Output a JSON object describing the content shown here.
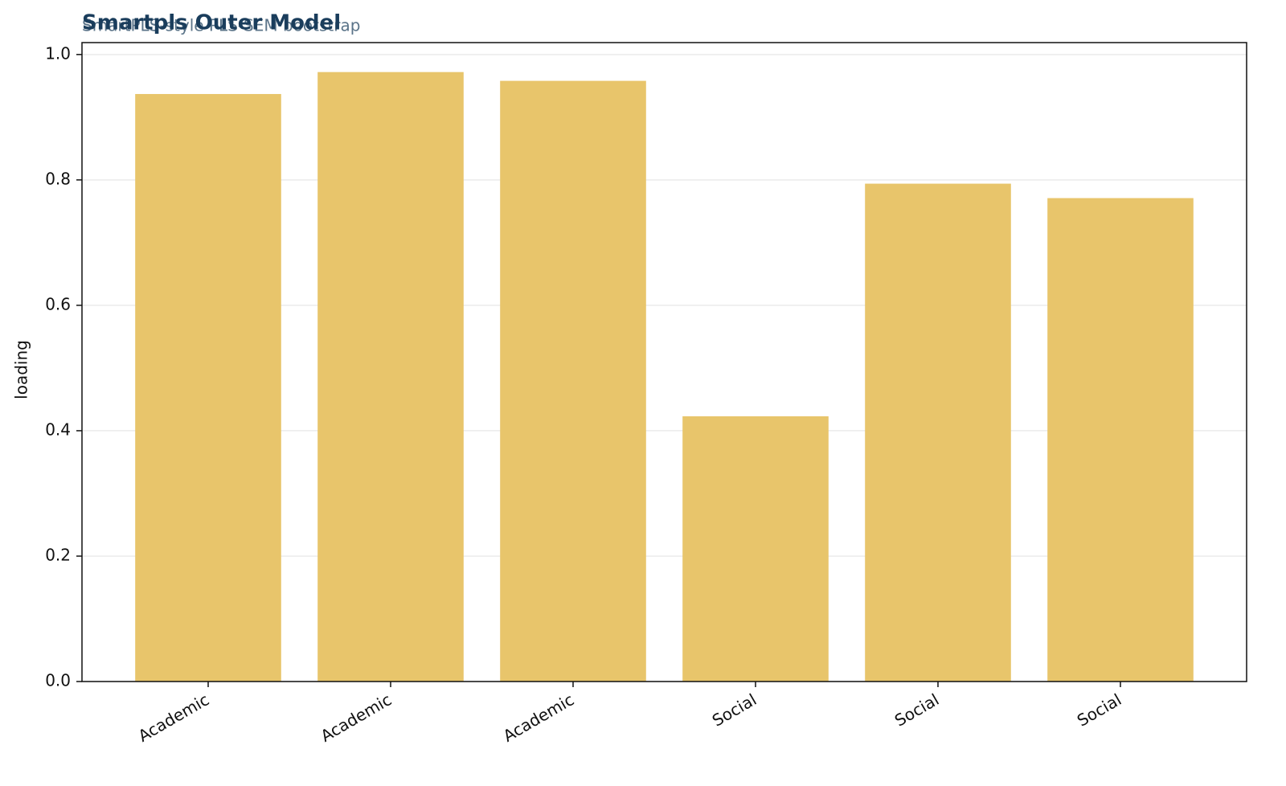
{
  "chart_data": {
    "type": "bar",
    "title": "Smartpls Outer Model",
    "subtitle": "SmartPLS-style PLS-SEM bootstrap",
    "y_label": "loading",
    "categories": [
      "Academic",
      "Academic",
      "Academic",
      "Social",
      "Social",
      "Social"
    ],
    "values": [
      0.937,
      0.972,
      0.958,
      0.423,
      0.794,
      0.771
    ],
    "color": "#e8c56b",
    "ylim": [
      0,
      1.019
    ],
    "yticks": [
      {
        "value": 0,
        "label": "0.0"
      },
      0.2,
      0.4,
      0.6,
      0.8,
      {
        "value": 1,
        "label": "1.0"
      }
    ],
    "grid": true
  }
}
